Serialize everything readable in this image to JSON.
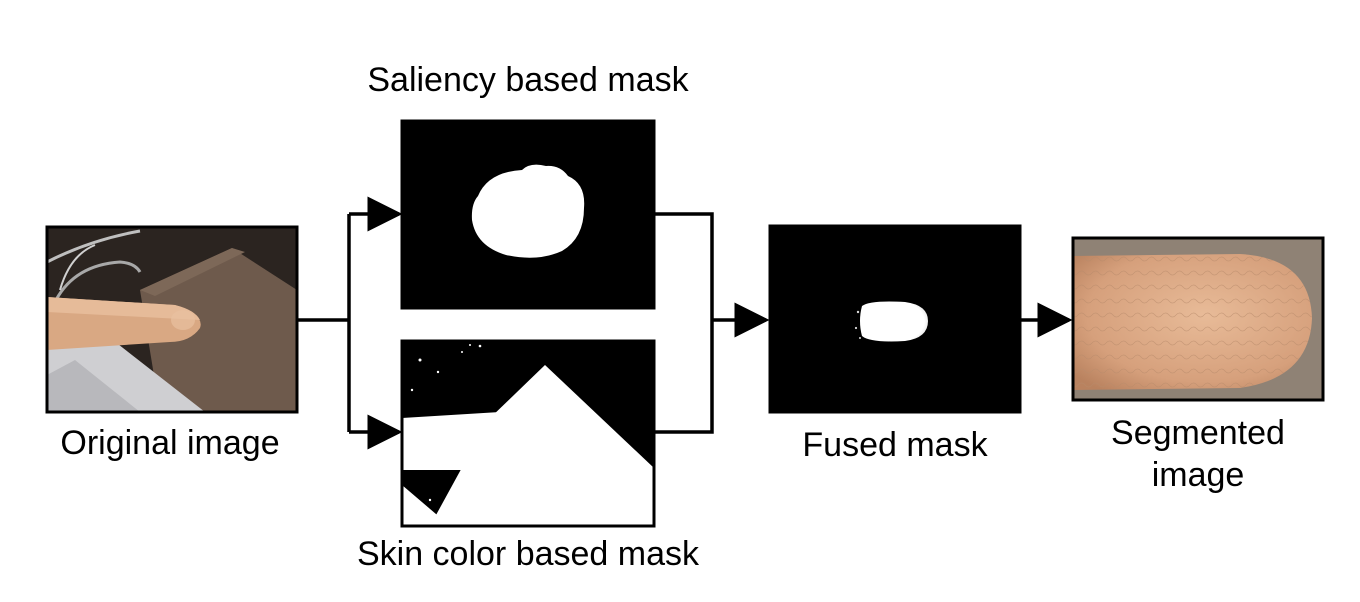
{
  "labels": {
    "original": "Original image",
    "saliency": "Saliency based mask",
    "skin": "Skin color based mask",
    "fused": "Fused mask",
    "segmented_line1": "Segmented",
    "segmented_line2": "image"
  },
  "colors": {
    "mask_bg": "#000000",
    "mask_fg": "#ffffff",
    "arrow": "#000000",
    "skin": "#d9a883",
    "photo_bg": "#2b2420",
    "board": "#6e5a4c",
    "pipe": "#cfcfd2",
    "segmented_bg": "#8f8275"
  }
}
